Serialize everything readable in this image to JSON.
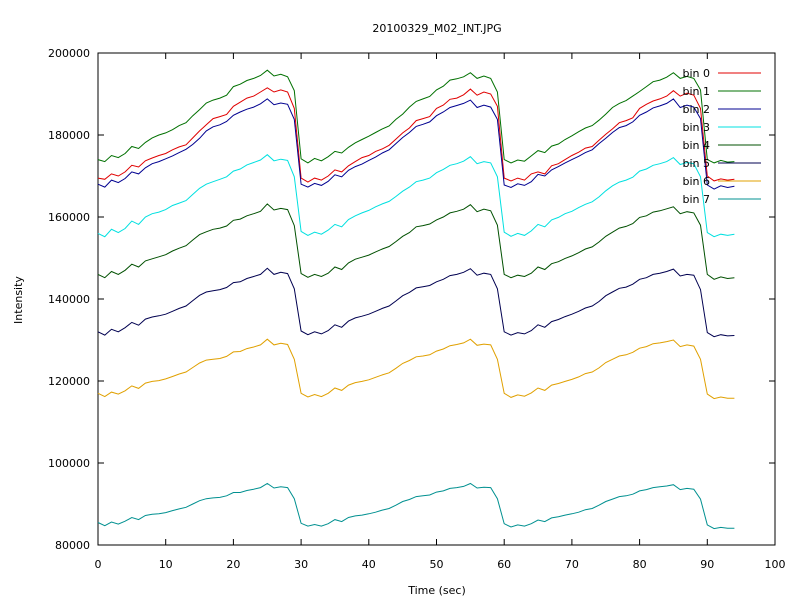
{
  "chart_data": {
    "type": "line",
    "title": "20100329_M02_INT.JPG",
    "xlabel": "Time (sec)",
    "ylabel": "Intensity",
    "xlim": [
      0,
      100
    ],
    "ylim": [
      80000,
      200000
    ],
    "xticks": [
      "0",
      "10",
      "20",
      "30",
      "40",
      "50",
      "60",
      "70",
      "80",
      "90",
      "100"
    ],
    "yticks": [
      "80000",
      "100000",
      "120000",
      "140000",
      "160000",
      "180000",
      "200000"
    ],
    "grid": false,
    "legend_position": "top-right",
    "x": [
      0,
      1,
      2,
      3,
      4,
      5,
      6,
      7,
      8,
      9,
      10,
      11,
      12,
      13,
      14,
      15,
      16,
      17,
      18,
      19,
      20,
      21,
      22,
      23,
      24,
      25,
      26,
      27,
      28,
      29,
      30,
      31,
      32,
      33,
      34,
      35,
      36,
      37,
      38,
      39,
      40,
      41,
      42,
      43,
      44,
      45,
      46,
      47,
      48,
      49,
      50,
      51,
      52,
      53,
      54,
      55,
      56,
      57,
      58,
      59,
      60,
      61,
      62,
      63,
      64,
      65,
      66,
      67,
      68,
      69,
      70,
      71,
      72,
      73,
      74,
      75,
      76,
      77,
      78,
      79,
      80,
      81,
      82,
      83,
      84,
      85,
      86,
      87,
      88,
      89,
      90,
      91,
      92,
      93,
      94
    ],
    "series": [
      {
        "name": "bin 0",
        "color": "#e00000",
        "values": [
          169500,
          169200,
          170500,
          170000,
          171000,
          172600,
          172200,
          173700,
          174400,
          175000,
          175500,
          176400,
          177100,
          177600,
          179300,
          181000,
          182500,
          184000,
          184500,
          185000,
          187000,
          188000,
          189000,
          189500,
          190500,
          191500,
          190500,
          191000,
          190500,
          186500,
          169500,
          168500,
          169500,
          169000,
          170000,
          171500,
          171000,
          172500,
          173500,
          174500,
          175000,
          176000,
          176600,
          177500,
          179000,
          180500,
          181700,
          183500,
          184000,
          184500,
          186500,
          187300,
          188700,
          189000,
          189800,
          191200,
          189700,
          190500,
          190000,
          187000,
          169500,
          168800,
          169500,
          169000,
          170500,
          171000,
          170500,
          172500,
          173000,
          174000,
          175000,
          175800,
          176800,
          177200,
          178700,
          180200,
          181500,
          183000,
          183500,
          184200,
          186500,
          187500,
          188300,
          188800,
          189500,
          190800,
          189500,
          190200,
          189700,
          186500,
          170000,
          168800,
          169300,
          169000,
          169200
        ]
      },
      {
        "name": "bin 1",
        "color": "#007000",
        "values": [
          174000,
          173500,
          175000,
          174500,
          175500,
          177200,
          176700,
          178200,
          179300,
          180000,
          180500,
          181300,
          182300,
          183000,
          184700,
          186200,
          187800,
          188500,
          189000,
          189700,
          191800,
          192400,
          193300,
          193800,
          194500,
          195800,
          194400,
          194800,
          194200,
          190800,
          174200,
          173200,
          174300,
          173700,
          174700,
          176000,
          175600,
          177000,
          178100,
          178900,
          179700,
          180600,
          181500,
          182200,
          183800,
          185100,
          186800,
          188200,
          188800,
          189400,
          191000,
          191900,
          193400,
          193700,
          194200,
          195200,
          193800,
          194400,
          193800,
          190500,
          174000,
          173200,
          173900,
          173600,
          174900,
          176200,
          175700,
          177300,
          177800,
          178900,
          179800,
          180800,
          181700,
          182300,
          183600,
          185100,
          186700,
          187700,
          188400,
          189500,
          190600,
          191800,
          193000,
          193400,
          194100,
          195200,
          193800,
          194300,
          193800,
          191000,
          174000,
          173200,
          173800,
          173400,
          173500
        ]
      },
      {
        "name": "bin 2",
        "color": "#000090",
        "values": [
          168000,
          167300,
          169000,
          168400,
          169400,
          171000,
          170500,
          172000,
          173000,
          173500,
          174200,
          174900,
          175700,
          176500,
          177700,
          179200,
          181000,
          182000,
          182500,
          183300,
          184800,
          185600,
          186300,
          186800,
          187600,
          188800,
          187400,
          187800,
          187500,
          183800,
          168000,
          167300,
          168200,
          167700,
          168700,
          170300,
          169800,
          171400,
          172300,
          172900,
          173800,
          174600,
          175600,
          176400,
          177900,
          179400,
          180600,
          182100,
          182600,
          183200,
          184700,
          185600,
          186700,
          187200,
          187700,
          188500,
          186700,
          187300,
          186800,
          183800,
          167800,
          167200,
          168100,
          167700,
          168600,
          170400,
          170000,
          171500,
          172300,
          173200,
          174000,
          174800,
          175700,
          176400,
          177900,
          179200,
          180600,
          181800,
          182300,
          183200,
          184800,
          185600,
          186600,
          187100,
          187700,
          188800,
          186700,
          187300,
          186800,
          184000,
          167800,
          166800,
          167600,
          167200,
          167500
        ]
      },
      {
        "name": "bin 3",
        "color": "#00e0e0",
        "values": [
          156000,
          155200,
          157000,
          156200,
          157200,
          159000,
          158200,
          160000,
          160800,
          161200,
          161800,
          162800,
          163400,
          164000,
          165500,
          167000,
          168000,
          168600,
          169200,
          169800,
          171200,
          171700,
          172700,
          173300,
          173900,
          175200,
          173700,
          174100,
          173800,
          169800,
          156500,
          155500,
          156300,
          155800,
          156800,
          158200,
          157600,
          159400,
          160300,
          161000,
          161600,
          162500,
          163200,
          163800,
          165000,
          166300,
          167300,
          168600,
          169000,
          169500,
          170800,
          171600,
          172600,
          173000,
          173600,
          174700,
          173000,
          173500,
          173200,
          169800,
          156300,
          155300,
          156000,
          155500,
          156600,
          158200,
          157600,
          159300,
          159900,
          160800,
          161400,
          162300,
          163100,
          163700,
          164900,
          166400,
          167600,
          168500,
          169000,
          169700,
          171200,
          171700,
          172600,
          173000,
          173500,
          174500,
          172800,
          173300,
          173000,
          169800,
          156200,
          155200,
          155800,
          155500,
          155800
        ]
      },
      {
        "name": "bin 4",
        "color": "#005000",
        "values": [
          146000,
          145200,
          146700,
          146000,
          147000,
          148500,
          147800,
          149300,
          149800,
          150300,
          150800,
          151700,
          152400,
          153000,
          154400,
          155700,
          156400,
          157000,
          157300,
          157800,
          159200,
          159500,
          160300,
          160800,
          161400,
          163200,
          161700,
          162100,
          161800,
          157900,
          146200,
          145300,
          146000,
          145500,
          146300,
          147800,
          147200,
          148800,
          149700,
          150200,
          150700,
          151500,
          152200,
          152800,
          154000,
          155300,
          156200,
          157600,
          157900,
          158300,
          159300,
          160000,
          161000,
          161400,
          161900,
          163000,
          161300,
          161900,
          161500,
          158000,
          146000,
          145200,
          145800,
          145500,
          146300,
          147800,
          147200,
          148600,
          149100,
          149900,
          150500,
          151300,
          152200,
          152700,
          153900,
          155300,
          156300,
          157300,
          157700,
          158400,
          159900,
          160300,
          161200,
          161500,
          162000,
          162500,
          160800,
          161300,
          161000,
          158000,
          146000,
          144800,
          145400,
          145000,
          145200
        ]
      },
      {
        "name": "bin 5",
        "color": "#000050",
        "values": [
          132000,
          131200,
          132600,
          132000,
          133000,
          134300,
          133600,
          135100,
          135600,
          135900,
          136300,
          137000,
          137700,
          138300,
          139600,
          140900,
          141700,
          142000,
          142300,
          142800,
          144000,
          144200,
          145000,
          145500,
          146000,
          147500,
          146000,
          146500,
          146200,
          142500,
          132200,
          131300,
          132000,
          131500,
          132300,
          133700,
          133100,
          134600,
          135400,
          135800,
          136300,
          137000,
          137700,
          138300,
          139500,
          140800,
          141600,
          142700,
          143000,
          143300,
          144200,
          144800,
          145700,
          146000,
          146500,
          147400,
          145800,
          146300,
          146000,
          142500,
          132000,
          131200,
          131800,
          131500,
          132300,
          133700,
          133100,
          134500,
          135000,
          135700,
          136300,
          137000,
          137800,
          138300,
          139400,
          140800,
          141700,
          142600,
          142900,
          143600,
          144800,
          145200,
          146000,
          146300,
          146700,
          147300,
          145600,
          146000,
          145800,
          142300,
          131800,
          130800,
          131300,
          131000,
          131100
        ]
      },
      {
        "name": "bin 6",
        "color": "#e0a000",
        "values": [
          117000,
          116200,
          117300,
          116800,
          117600,
          118800,
          118200,
          119500,
          119900,
          120100,
          120500,
          121100,
          121700,
          122200,
          123300,
          124400,
          125100,
          125300,
          125500,
          126000,
          127100,
          127200,
          127900,
          128300,
          128800,
          130200,
          128800,
          129200,
          128900,
          125300,
          117000,
          116100,
          116700,
          116200,
          117000,
          118300,
          117700,
          119000,
          119600,
          119900,
          120300,
          120900,
          121500,
          122000,
          123100,
          124300,
          125000,
          125900,
          126100,
          126400,
          127300,
          127800,
          128600,
          128900,
          129300,
          130200,
          128700,
          129000,
          128800,
          125300,
          117000,
          116000,
          116600,
          116300,
          117100,
          118300,
          117700,
          119000,
          119400,
          119900,
          120400,
          121000,
          121800,
          122200,
          123200,
          124500,
          125300,
          126100,
          126400,
          127000,
          128000,
          128400,
          129100,
          129300,
          129600,
          130000,
          128400,
          128800,
          128500,
          125300,
          116800,
          115700,
          116100,
          115800,
          115800
        ]
      },
      {
        "name": "bin 7",
        "color": "#009090",
        "values": [
          85500,
          84700,
          85600,
          85100,
          85800,
          86700,
          86200,
          87200,
          87500,
          87600,
          87900,
          88400,
          88800,
          89200,
          90000,
          90800,
          91300,
          91500,
          91600,
          92000,
          92800,
          92800,
          93300,
          93600,
          94000,
          95000,
          93900,
          94200,
          94000,
          91300,
          85300,
          84600,
          85000,
          84600,
          85200,
          86200,
          85700,
          86700,
          87100,
          87300,
          87600,
          88000,
          88500,
          88900,
          89700,
          90600,
          91100,
          91800,
          92000,
          92200,
          92900,
          93200,
          93800,
          94000,
          94300,
          95000,
          93900,
          94100,
          94000,
          91300,
          85200,
          84400,
          84900,
          84600,
          85200,
          86100,
          85700,
          86600,
          86900,
          87300,
          87600,
          88000,
          88600,
          88900,
          89700,
          90600,
          91200,
          91800,
          92000,
          92400,
          93200,
          93500,
          94000,
          94200,
          94400,
          94700,
          93500,
          93800,
          93600,
          91200,
          84900,
          84000,
          84300,
          84100,
          84100
        ]
      }
    ]
  }
}
